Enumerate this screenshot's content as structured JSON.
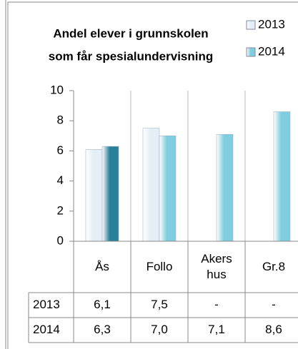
{
  "chart_data": {
    "type": "bar",
    "title_lines": [
      "Andel elever i grunnskolen",
      "som får spesialundervisning"
    ],
    "categories": [
      "Ås",
      "Follo",
      "Akers hus",
      "Gr.8"
    ],
    "series": [
      {
        "name": "2013",
        "color": "#e4eef7",
        "values": [
          6.1,
          7.5,
          null,
          null
        ],
        "value_labels": [
          "6,1",
          "7,5",
          "-",
          "-"
        ]
      },
      {
        "name": "2014",
        "color": "#7fcde0",
        "colors": [
          "#2b8099",
          "#7fcde0",
          "#7fcde0",
          "#7fcde0"
        ],
        "values": [
          6.3,
          7.0,
          7.1,
          8.6
        ],
        "value_labels": [
          "6,3",
          "7,0",
          "7,1",
          "8,6"
        ]
      }
    ],
    "ylim": [
      0,
      10
    ],
    "yticks": [
      0,
      2,
      4,
      6,
      8,
      10
    ],
    "grid": false,
    "legend": "top-right"
  }
}
